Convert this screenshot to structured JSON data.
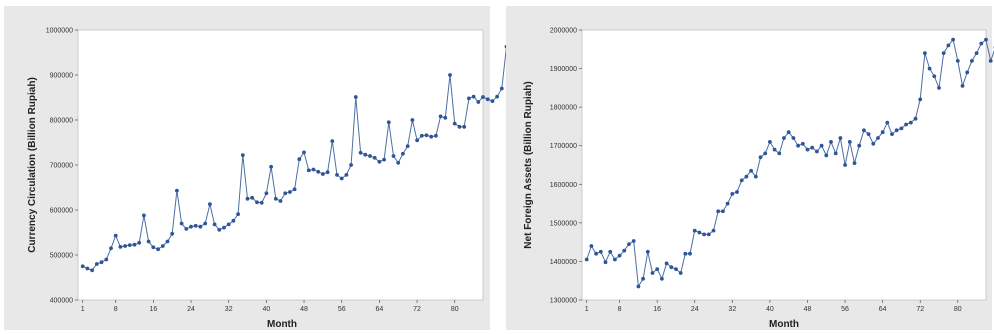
{
  "chart_data": [
    {
      "type": "line",
      "xlabel": "Month",
      "ylabel": "Currency Circulation (Billion Rupiah)",
      "x_ticks": [
        1,
        8,
        16,
        24,
        32,
        40,
        48,
        56,
        64,
        72,
        80
      ],
      "x_tick_labels": [
        "1",
        "8",
        "16",
        "24",
        "32",
        "40",
        "48",
        "56",
        "64",
        "72",
        "80"
      ],
      "y_ticks": [
        400000,
        500000,
        600000,
        700000,
        800000,
        900000,
        1000000
      ],
      "y_tick_labels": [
        "400000",
        "500000",
        "600000",
        "700000",
        "800000",
        "900000",
        "1000000"
      ],
      "xlim": [
        0,
        86
      ],
      "ylim": [
        400000,
        1000000
      ],
      "grid": false,
      "colors": {
        "line": "#4a6fa5",
        "marker": "#2f5597",
        "plot_bg": "#ffffff",
        "panel_bg": "#e8e8e8"
      },
      "series": [
        {
          "values": [
            475000,
            470000,
            466000,
            480000,
            484000,
            490000,
            515000,
            543000,
            518000,
            520000,
            522000,
            523000,
            527000,
            588000,
            530000,
            517000,
            513000,
            520000,
            530000,
            547000,
            643000,
            570000,
            558000,
            563000,
            565000,
            563000,
            570000,
            613000,
            568000,
            556000,
            561000,
            568000,
            576000,
            591000,
            722000,
            625000,
            627000,
            617000,
            616000,
            637000,
            696000,
            625000,
            620000,
            637000,
            640000,
            646000,
            713000,
            728000,
            688000,
            690000,
            685000,
            680000,
            684000,
            753000,
            678000,
            670000,
            678000,
            700000,
            851000,
            727000,
            723000,
            720000,
            716000,
            707000,
            712000,
            795000,
            720000,
            705000,
            725000,
            742000,
            800000,
            755000,
            765000,
            766000,
            763000,
            765000,
            808000,
            805000,
            900000,
            792000,
            785000,
            785000,
            848000,
            852000,
            840000,
            851000,
            846000,
            842000,
            852000,
            870000,
            963000
          ]
        }
      ]
    },
    {
      "type": "line",
      "xlabel": "Month",
      "ylabel": "Net Foreign Assets (Billion Rupiah)",
      "x_ticks": [
        1,
        8,
        16,
        24,
        32,
        40,
        48,
        56,
        64,
        72,
        80
      ],
      "x_tick_labels": [
        "1",
        "8",
        "16",
        "24",
        "32",
        "40",
        "48",
        "56",
        "64",
        "72",
        "80"
      ],
      "y_ticks": [
        1300000,
        1400000,
        1500000,
        1600000,
        1700000,
        1800000,
        1900000,
        2000000
      ],
      "y_tick_labels": [
        "1300000",
        "1400000",
        "1500000",
        "1600000",
        "1700000",
        "1800000",
        "1900000",
        "2000000"
      ],
      "xlim": [
        0,
        86
      ],
      "ylim": [
        1300000,
        2000000
      ],
      "grid": false,
      "colors": {
        "line": "#4a6fa5",
        "marker": "#2f5597",
        "plot_bg": "#ffffff",
        "panel_bg": "#e8e8e8"
      },
      "series": [
        {
          "values": [
            1405000,
            1440000,
            1420000,
            1425000,
            1398000,
            1425000,
            1405000,
            1415000,
            1428000,
            1445000,
            1453000,
            1335000,
            1355000,
            1425000,
            1370000,
            1380000,
            1355000,
            1395000,
            1385000,
            1380000,
            1370000,
            1420000,
            1420000,
            1480000,
            1475000,
            1470000,
            1470000,
            1480000,
            1530000,
            1530000,
            1550000,
            1575000,
            1580000,
            1610000,
            1620000,
            1635000,
            1620000,
            1670000,
            1680000,
            1710000,
            1690000,
            1680000,
            1720000,
            1735000,
            1720000,
            1700000,
            1705000,
            1690000,
            1695000,
            1685000,
            1700000,
            1675000,
            1710000,
            1680000,
            1720000,
            1650000,
            1710000,
            1655000,
            1700000,
            1740000,
            1730000,
            1705000,
            1720000,
            1735000,
            1760000,
            1730000,
            1740000,
            1745000,
            1755000,
            1760000,
            1770000,
            1820000,
            1940000,
            1900000,
            1880000,
            1850000,
            1940000,
            1960000,
            1975000,
            1920000,
            1855000,
            1890000,
            1920000,
            1940000,
            1965000,
            1975000,
            1920000,
            1955000,
            1960000,
            1950000,
            1975000
          ]
        }
      ]
    }
  ]
}
